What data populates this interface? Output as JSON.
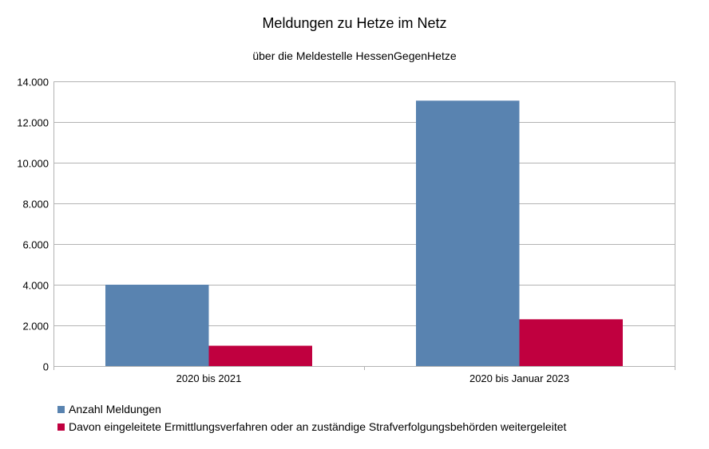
{
  "chart_data": {
    "type": "bar",
    "title": "Meldungen zu Hetze im Netz",
    "subtitle": "über die Meldestelle HessenGegenHetze",
    "categories": [
      "2020 bis 2021",
      "2020 bis Januar 2023"
    ],
    "series": [
      {
        "name": "Anzahl Meldungen",
        "values": [
          4000,
          13050
        ],
        "color": "#5983b0"
      },
      {
        "name": "Davon eingeleitete Ermittlungsverfahren oder an zuständige Strafverfolgungsbehörden weitergeleitet",
        "values": [
          1000,
          2300
        ],
        "color": "#c0003f"
      }
    ],
    "ylim": [
      0,
      14000
    ],
    "yticks": [
      {
        "value": 0,
        "label": "0"
      },
      {
        "value": 2000,
        "label": "2.000"
      },
      {
        "value": 4000,
        "label": "4.000"
      },
      {
        "value": 6000,
        "label": "6.000"
      },
      {
        "value": 8000,
        "label": "8.000"
      },
      {
        "value": 10000,
        "label": "10.000"
      },
      {
        "value": 12000,
        "label": "12.000"
      },
      {
        "value": 14000,
        "label": "14.000"
      }
    ],
    "grid": true,
    "legend_position": "bottom-left",
    "xlabel": "",
    "ylabel": ""
  }
}
